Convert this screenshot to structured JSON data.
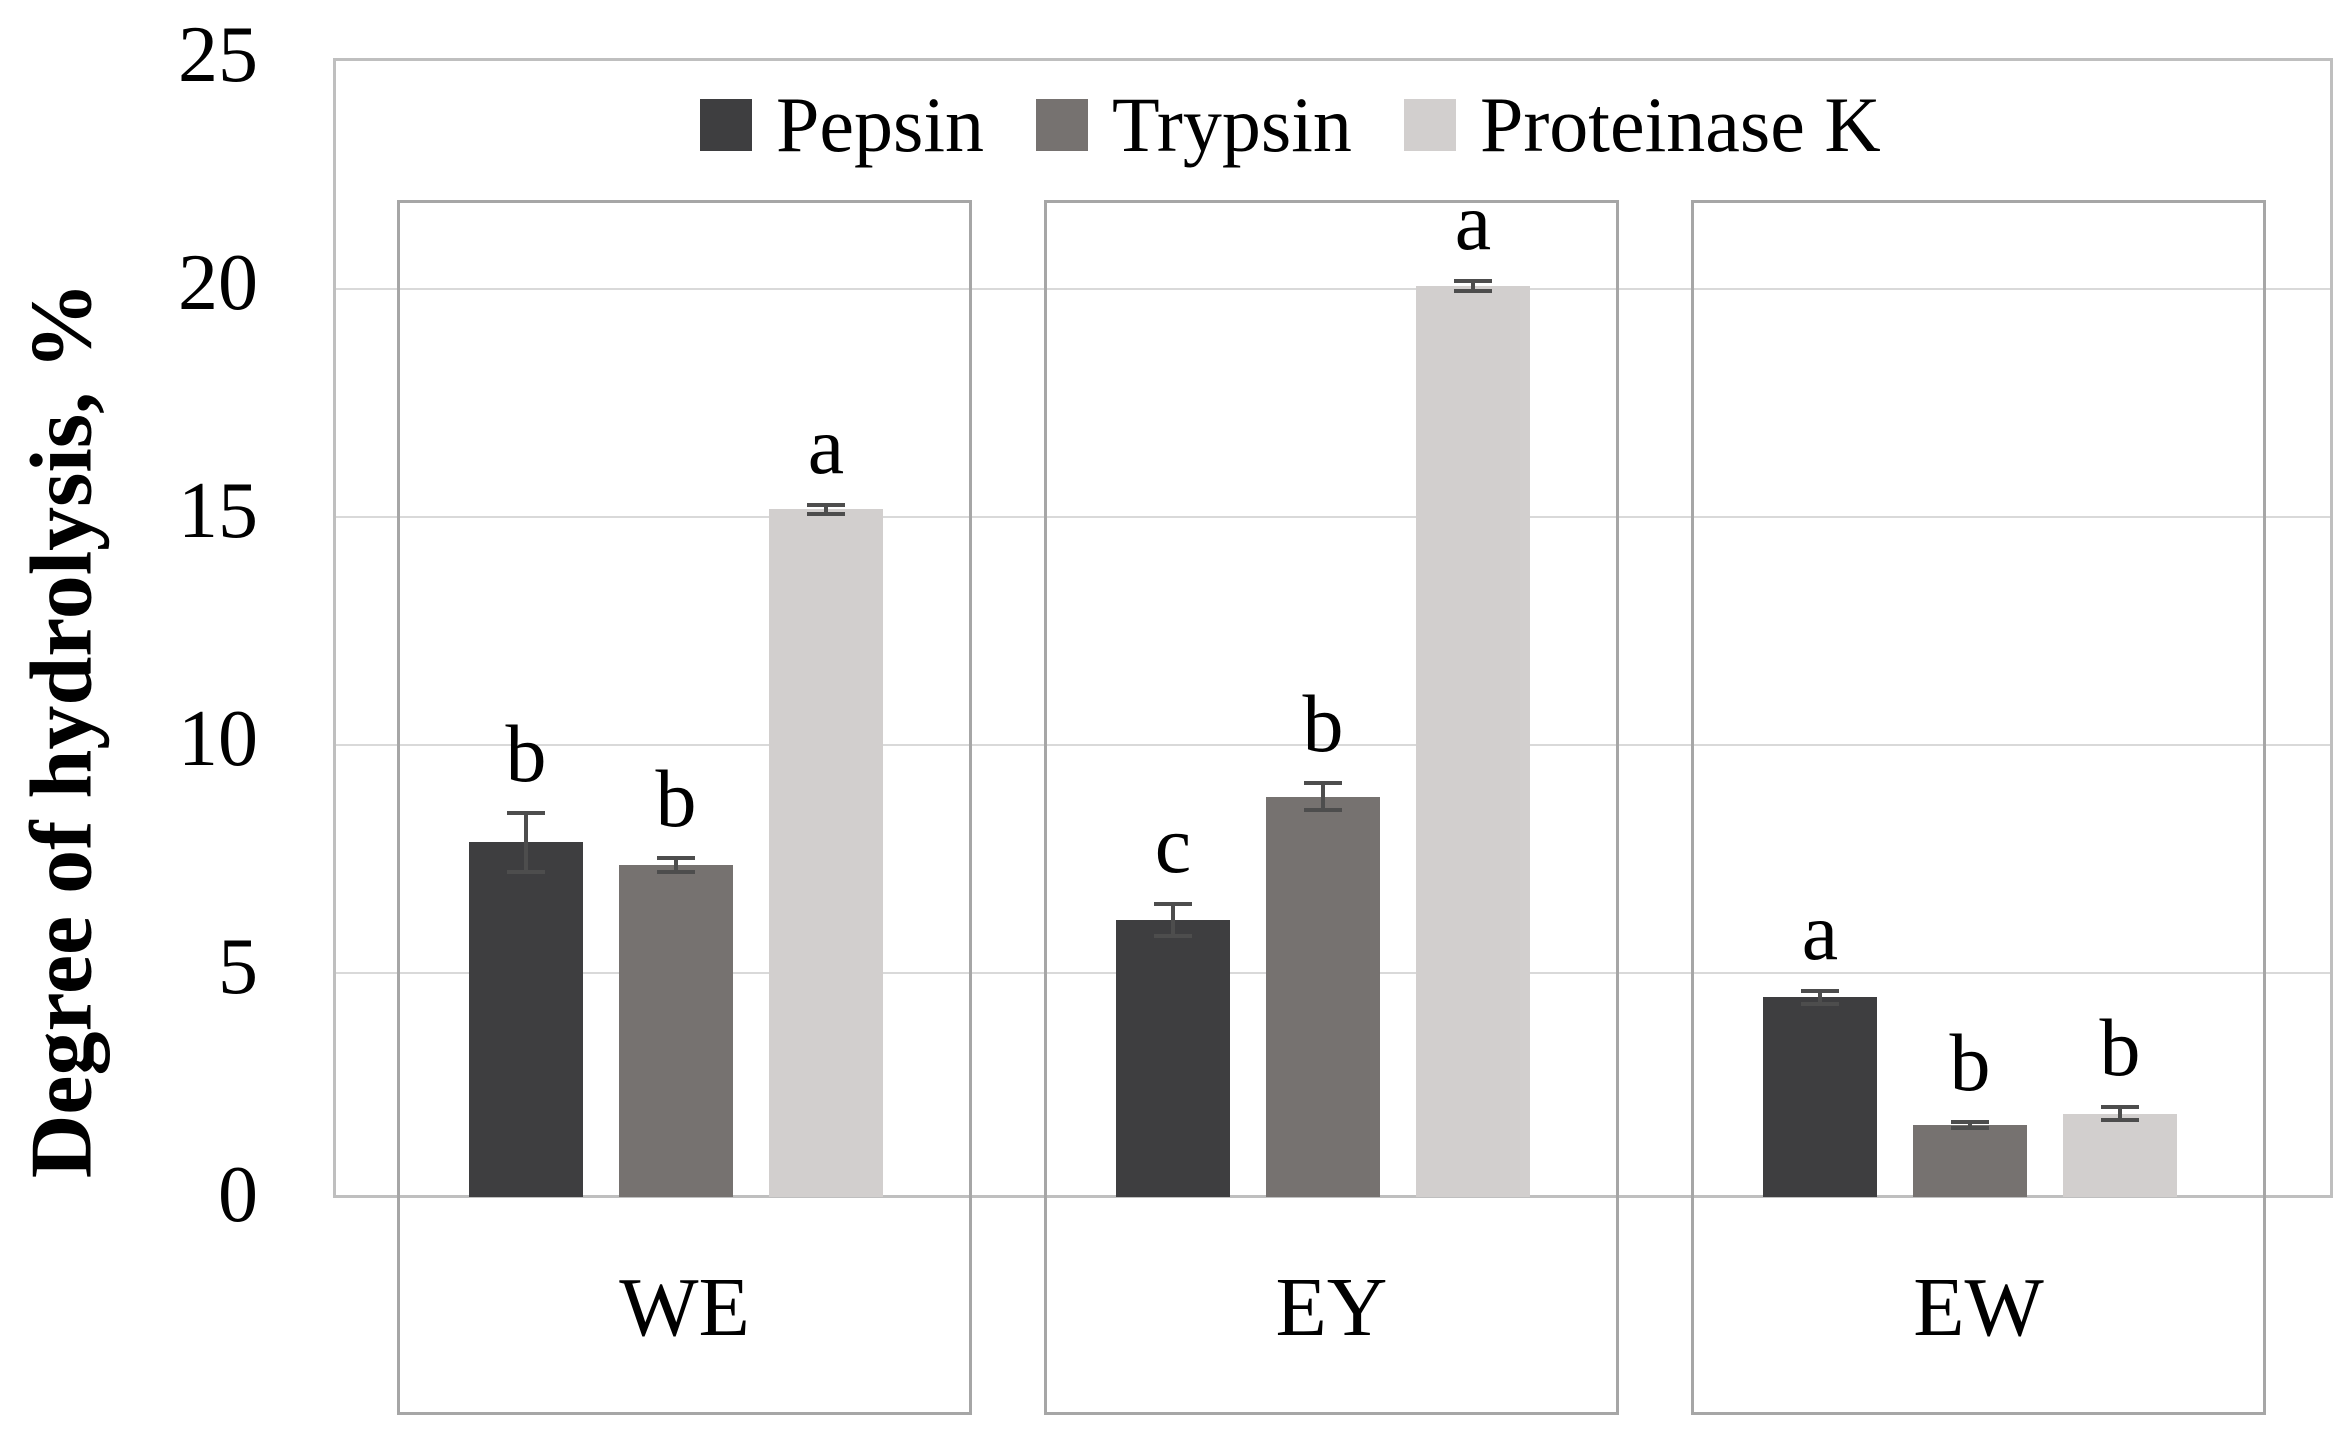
{
  "figure": {
    "background": "#ffffff"
  },
  "y_axis": {
    "title": "Degree of hydrolysis, %",
    "tick_labels": [
      "25",
      "20",
      "15",
      "10",
      "5",
      "0"
    ]
  },
  "legend": {
    "items": [
      {
        "label": "Pepsin",
        "color": "#3e3e40"
      },
      {
        "label": "Trypsin",
        "color": "#767270"
      },
      {
        "label": "Proteinase K",
        "color": "#d2cfce"
      }
    ]
  },
  "chart_data": {
    "type": "bar",
    "title": "",
    "xlabel": "",
    "ylabel": "Degree of hydrolysis, %",
    "ylim": [
      0,
      25
    ],
    "yticks": [
      0,
      5,
      10,
      15,
      20,
      25
    ],
    "grid": true,
    "legend_position": "top-inside",
    "categories": [
      "WE",
      "EY",
      "EW"
    ],
    "series": [
      {
        "name": "Pepsin",
        "color": "#3e3e40",
        "values": [
          7.8,
          6.1,
          4.4
        ],
        "errors": [
          0.65,
          0.35,
          0.15
        ],
        "letters": [
          "b",
          "c",
          "a"
        ]
      },
      {
        "name": "Trypsin",
        "color": "#767270",
        "values": [
          7.3,
          8.8,
          1.6
        ],
        "errors": [
          0.15,
          0.3,
          0.07
        ],
        "letters": [
          "b",
          "b",
          "b"
        ]
      },
      {
        "name": "Proteinase K",
        "color": "#d2cfce",
        "values": [
          15.1,
          20.0,
          1.85
        ],
        "errors": [
          0.1,
          0.1,
          0.15
        ],
        "letters": [
          "a",
          "a",
          "b"
        ]
      }
    ],
    "annotations_note_visible_letters": [
      "a",
      "b",
      "c"
    ],
    "error_bar_color": "#4d4d4d",
    "gridline_color": "#d9d9d9",
    "plot_border_color": "#bfbfbf",
    "group_box_border_color": "#a6a6a6"
  }
}
